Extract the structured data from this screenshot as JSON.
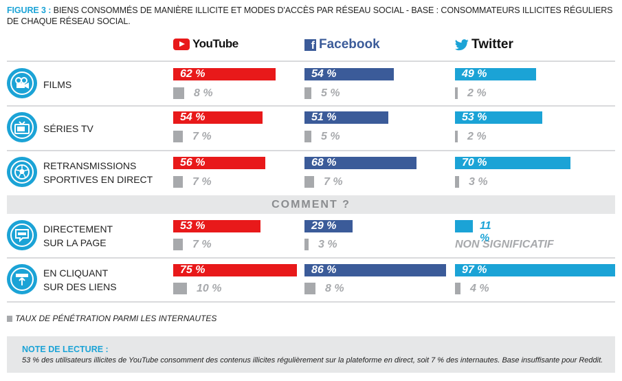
{
  "title": {
    "fig": "FIGURE 3 :",
    "text_line1": " BIENS CONSOMMÉS DE MANIÈRE ILLICITE ET MODES D'ACCÈS PAR RÉSEAU SOCIAL - BASE : CONSOMMATEURS ILLICITES RÉGULIERS",
    "text_line2": "DE CHAQUE RÉSEAU SOCIAL."
  },
  "brands": {
    "youtube": "YouTube",
    "facebook": "Facebook",
    "twitter": "Twitter"
  },
  "icons": {
    "films": "film-camera-icon",
    "series": "tv-icon",
    "sport": "soccer-ball-icon",
    "direct": "chat-bubble-icon",
    "links": "link-click-icon"
  },
  "colors": {
    "youtube": "#e8191a",
    "facebook": "#3b5b99",
    "twitter": "#1ba3d6",
    "penetration": "#a7a9ac",
    "accent": "#1ba3d6"
  },
  "comment_label": "COMMENT ?",
  "non_significatif": "NON SIGNIFICATIF",
  "legend": "TAUX DE PÉNÉTRATION PARMI LES INTERNAUTES",
  "note": {
    "title": "NOTE DE LECTURE :",
    "body": "53 % des utilisateurs illicites de YouTube consomment des contenus illicites régulièrement sur la plateforme en direct, soit 7 % des internautes. Base insuffisante pour Reddit."
  },
  "chart_data": {
    "type": "bar",
    "categories": [
      "FILMS",
      "SÉRIES TV",
      "RETRANSMISSIONS SPORTIVES EN DIRECT",
      "DIRECTEMENT SUR LA PAGE",
      "EN CLIQUANT SUR DES LIENS"
    ],
    "category_lines": [
      [
        "FILMS"
      ],
      [
        "SÉRIES TV"
      ],
      [
        "RETRANSMISSIONS",
        "SPORTIVES EN DIRECT"
      ],
      [
        "DIRECTEMENT",
        "SUR LA PAGE"
      ],
      [
        "EN CLIQUANT",
        "SUR DES LIENS"
      ]
    ],
    "series": [
      {
        "name": "YouTube",
        "values": [
          62,
          54,
          56,
          53,
          75
        ],
        "labels": [
          "62 %",
          "54 %",
          "56 %",
          "53 %",
          "75 %"
        ],
        "penetration": [
          8,
          7,
          7,
          7,
          10
        ],
        "penetration_labels": [
          "8 %",
          "7 %",
          "7 %",
          "7 %",
          "10 %"
        ]
      },
      {
        "name": "Facebook",
        "values": [
          54,
          51,
          68,
          29,
          86
        ],
        "labels": [
          "54 %",
          "51 %",
          "68 %",
          "29 %",
          "86 %"
        ],
        "penetration": [
          5,
          5,
          7,
          3,
          8
        ],
        "penetration_labels": [
          "5 %",
          "5 %",
          "7 %",
          "3 %",
          "8 %"
        ]
      },
      {
        "name": "Twitter",
        "values": [
          49,
          53,
          70,
          11,
          97
        ],
        "labels": [
          "49 %",
          "53 %",
          "70 %",
          "11 %",
          "97 %"
        ],
        "penetration": [
          2,
          2,
          3,
          null,
          4
        ],
        "penetration_labels": [
          "2 %",
          "2 %",
          "3 %",
          null,
          "4 %"
        ]
      }
    ],
    "ylim": [
      0,
      100
    ],
    "grid": false
  }
}
